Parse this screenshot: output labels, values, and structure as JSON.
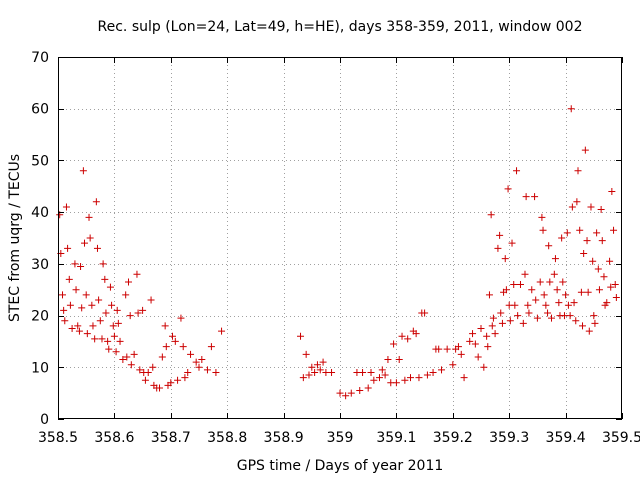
{
  "chart_data": {
    "type": "scatter",
    "title": "Rec. sulp (Lon=24, Lat=49, h=HE), days 358-359, 2011, window 002",
    "xlabel": "GPS time / Days of year 2011",
    "ylabel": "STEC from uqrg / TECUs",
    "xlim": [
      358.5,
      359.5
    ],
    "ylim": [
      0,
      70
    ],
    "x_ticks": [
      358.5,
      358.6,
      358.7,
      358.8,
      358.9,
      359.0,
      359.1,
      359.2,
      359.3,
      359.4,
      359.5
    ],
    "x_tick_labels": [
      "358.5",
      "358.6",
      "358.7",
      "358.8",
      "358.9",
      "359",
      "359.1",
      "359.2",
      "359.3",
      "359.4",
      "359.5"
    ],
    "y_ticks": [
      0,
      10,
      20,
      30,
      40,
      50,
      60,
      70
    ],
    "y_tick_labels": [
      "0",
      "10",
      "20",
      "30",
      "40",
      "50",
      "60",
      "70"
    ],
    "grid": true,
    "marker_color": "#cc0000",
    "marker": "plus",
    "points": [
      [
        358.503,
        39.5
      ],
      [
        358.505,
        32.0
      ],
      [
        358.508,
        24.0
      ],
      [
        358.51,
        21.0
      ],
      [
        358.512,
        19.0
      ],
      [
        358.515,
        41.0
      ],
      [
        358.517,
        33.0
      ],
      [
        358.52,
        27.0
      ],
      [
        358.522,
        22.0
      ],
      [
        358.525,
        17.5
      ],
      [
        358.53,
        30.0
      ],
      [
        358.532,
        25.0
      ],
      [
        358.535,
        18.0
      ],
      [
        358.538,
        17.0
      ],
      [
        358.54,
        29.5
      ],
      [
        358.542,
        21.5
      ],
      [
        358.545,
        48.0
      ],
      [
        358.547,
        34.0
      ],
      [
        358.55,
        24.0
      ],
      [
        358.552,
        16.5
      ],
      [
        358.555,
        39.0
      ],
      [
        358.557,
        35.0
      ],
      [
        358.56,
        22.0
      ],
      [
        358.562,
        18.0
      ],
      [
        358.565,
        15.5
      ],
      [
        358.568,
        42.0
      ],
      [
        358.57,
        33.0
      ],
      [
        358.572,
        23.0
      ],
      [
        358.575,
        19.0
      ],
      [
        358.578,
        15.5
      ],
      [
        358.58,
        30.0
      ],
      [
        358.583,
        27.0
      ],
      [
        358.585,
        20.5
      ],
      [
        358.588,
        15.0
      ],
      [
        358.59,
        13.5
      ],
      [
        358.593,
        25.5
      ],
      [
        358.595,
        22.0
      ],
      [
        358.598,
        18.0
      ],
      [
        358.6,
        16.0
      ],
      [
        358.603,
        13.0
      ],
      [
        358.605,
        21.0
      ],
      [
        358.607,
        18.5
      ],
      [
        358.61,
        15.0
      ],
      [
        358.615,
        11.5
      ],
      [
        358.62,
        24.0
      ],
      [
        358.622,
        12.0
      ],
      [
        358.625,
        26.5
      ],
      [
        358.628,
        20.0
      ],
      [
        358.63,
        10.5
      ],
      [
        358.635,
        12.5
      ],
      [
        358.64,
        28.0
      ],
      [
        358.642,
        20.5
      ],
      [
        358.645,
        9.5
      ],
      [
        358.65,
        21.0
      ],
      [
        358.652,
        9.0
      ],
      [
        358.655,
        7.5
      ],
      [
        358.66,
        9.0
      ],
      [
        358.665,
        23.0
      ],
      [
        358.668,
        10.0
      ],
      [
        358.67,
        6.5
      ],
      [
        358.675,
        6.0
      ],
      [
        358.68,
        6.0
      ],
      [
        358.685,
        12.0
      ],
      [
        358.69,
        18.0
      ],
      [
        358.692,
        14.0
      ],
      [
        358.695,
        6.5
      ],
      [
        358.7,
        7.0
      ],
      [
        358.703,
        16.0
      ],
      [
        358.708,
        15.0
      ],
      [
        358.712,
        7.5
      ],
      [
        358.718,
        19.5
      ],
      [
        358.722,
        14.0
      ],
      [
        358.725,
        8.0
      ],
      [
        358.73,
        9.0
      ],
      [
        358.735,
        12.5
      ],
      [
        358.745,
        11.0
      ],
      [
        358.75,
        10.0
      ],
      [
        358.755,
        11.5
      ],
      [
        358.765,
        9.5
      ],
      [
        358.772,
        14.0
      ],
      [
        358.78,
        9.0
      ],
      [
        358.79,
        17.0
      ],
      [
        358.93,
        16.0
      ],
      [
        358.935,
        8.0
      ],
      [
        358.94,
        12.5
      ],
      [
        358.945,
        8.5
      ],
      [
        358.95,
        10.0
      ],
      [
        358.955,
        9.0
      ],
      [
        358.96,
        10.5
      ],
      [
        358.965,
        9.5
      ],
      [
        358.97,
        11.0
      ],
      [
        358.975,
        9.0
      ],
      [
        358.985,
        9.0
      ],
      [
        359.0,
        5.0
      ],
      [
        359.01,
        4.5
      ],
      [
        359.02,
        5.0
      ],
      [
        359.03,
        9.0
      ],
      [
        359.035,
        5.5
      ],
      [
        359.04,
        9.0
      ],
      [
        359.05,
        6.0
      ],
      [
        359.055,
        9.0
      ],
      [
        359.06,
        7.5
      ],
      [
        359.07,
        8.0
      ],
      [
        359.075,
        9.5
      ],
      [
        359.08,
        8.5
      ],
      [
        359.085,
        11.5
      ],
      [
        359.09,
        7.0
      ],
      [
        359.095,
        14.5
      ],
      [
        359.1,
        7.0
      ],
      [
        359.105,
        11.5
      ],
      [
        359.11,
        16.0
      ],
      [
        359.115,
        7.5
      ],
      [
        359.12,
        15.5
      ],
      [
        359.125,
        8.0
      ],
      [
        359.13,
        17.0
      ],
      [
        359.135,
        16.5
      ],
      [
        359.14,
        8.0
      ],
      [
        359.145,
        20.5
      ],
      [
        359.15,
        20.5
      ],
      [
        359.155,
        8.5
      ],
      [
        359.165,
        9.0
      ],
      [
        359.17,
        13.5
      ],
      [
        359.175,
        13.5
      ],
      [
        359.18,
        9.5
      ],
      [
        359.19,
        13.5
      ],
      [
        359.2,
        10.5
      ],
      [
        359.205,
        13.5
      ],
      [
        359.21,
        14.0
      ],
      [
        359.215,
        12.5
      ],
      [
        359.22,
        8.0
      ],
      [
        359.23,
        15.0
      ],
      [
        359.235,
        16.5
      ],
      [
        359.24,
        14.5
      ],
      [
        359.245,
        12.0
      ],
      [
        359.25,
        17.5
      ],
      [
        359.255,
        10.0
      ],
      [
        359.26,
        16.0
      ],
      [
        359.262,
        14.0
      ],
      [
        359.265,
        24.0
      ],
      [
        359.268,
        39.5
      ],
      [
        359.27,
        18.0
      ],
      [
        359.272,
        19.5
      ],
      [
        359.275,
        16.5
      ],
      [
        359.28,
        33.0
      ],
      [
        359.283,
        35.5
      ],
      [
        359.285,
        20.5
      ],
      [
        359.288,
        18.5
      ],
      [
        359.29,
        24.5
      ],
      [
        359.293,
        31.0
      ],
      [
        359.295,
        25.0
      ],
      [
        359.298,
        44.5
      ],
      [
        359.3,
        22.0
      ],
      [
        359.302,
        19.0
      ],
      [
        359.305,
        34.0
      ],
      [
        359.308,
        26.0
      ],
      [
        359.31,
        22.0
      ],
      [
        359.313,
        48.0
      ],
      [
        359.315,
        20.0
      ],
      [
        359.32,
        26.0
      ],
      [
        359.325,
        18.5
      ],
      [
        359.328,
        28.0
      ],
      [
        359.33,
        43.0
      ],
      [
        359.333,
        22.0
      ],
      [
        359.335,
        20.5
      ],
      [
        359.34,
        25.0
      ],
      [
        359.345,
        43.0
      ],
      [
        359.347,
        23.0
      ],
      [
        359.35,
        19.5
      ],
      [
        359.355,
        26.5
      ],
      [
        359.358,
        39.0
      ],
      [
        359.36,
        36.5
      ],
      [
        359.362,
        24.0
      ],
      [
        359.365,
        22.0
      ],
      [
        359.368,
        20.5
      ],
      [
        359.37,
        33.5
      ],
      [
        359.372,
        26.5
      ],
      [
        359.375,
        19.5
      ],
      [
        359.38,
        28.0
      ],
      [
        359.382,
        31.0
      ],
      [
        359.385,
        25.0
      ],
      [
        359.388,
        22.5
      ],
      [
        359.39,
        20.0
      ],
      [
        359.393,
        35.0
      ],
      [
        359.395,
        26.5
      ],
      [
        359.398,
        20.0
      ],
      [
        359.4,
        24.0
      ],
      [
        359.403,
        36.0
      ],
      [
        359.405,
        22.0
      ],
      [
        359.408,
        20.0
      ],
      [
        359.41,
        60.0
      ],
      [
        359.412,
        41.0
      ],
      [
        359.415,
        22.5
      ],
      [
        359.418,
        19.0
      ],
      [
        359.42,
        42.0
      ],
      [
        359.422,
        48.0
      ],
      [
        359.425,
        36.5
      ],
      [
        359.428,
        24.5
      ],
      [
        359.43,
        18.0
      ],
      [
        359.432,
        32.0
      ],
      [
        359.435,
        52.0
      ],
      [
        359.438,
        34.5
      ],
      [
        359.44,
        24.5
      ],
      [
        359.442,
        17.0
      ],
      [
        359.445,
        41.0
      ],
      [
        359.448,
        30.5
      ],
      [
        359.45,
        20.0
      ],
      [
        359.452,
        18.5
      ],
      [
        359.455,
        36.0
      ],
      [
        359.458,
        29.0
      ],
      [
        359.46,
        25.0
      ],
      [
        359.463,
        40.5
      ],
      [
        359.465,
        34.5
      ],
      [
        359.468,
        27.5
      ],
      [
        359.47,
        22.0
      ],
      [
        359.473,
        22.5
      ],
      [
        359.478,
        30.5
      ],
      [
        359.48,
        25.5
      ],
      [
        359.482,
        44.0
      ],
      [
        359.485,
        36.5
      ],
      [
        359.488,
        26.0
      ],
      [
        359.49,
        23.5
      ]
    ]
  }
}
